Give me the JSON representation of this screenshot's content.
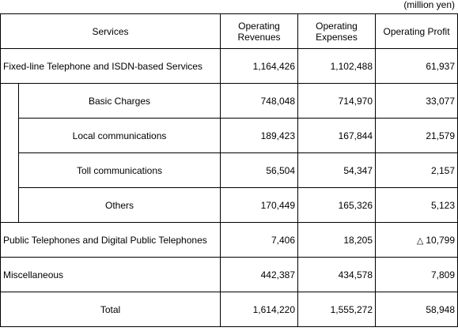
{
  "unit_label": "(million yen)",
  "headers": {
    "services": "Services",
    "revenues": "Operating Revenues",
    "expenses": "Operating Expenses",
    "profit": "Operating Profit"
  },
  "rows": {
    "fixed_line": {
      "name": "Fixed-line Telephone and ISDN-based Services",
      "revenues": "1,164,426",
      "expenses": "1,102,488",
      "profit": "61,937"
    },
    "basic": {
      "name": "Basic Charges",
      "revenues": "748,048",
      "expenses": "714,970",
      "profit": "33,077"
    },
    "local": {
      "name": "Local communications",
      "revenues": "189,423",
      "expenses": "167,844",
      "profit": "21,579"
    },
    "toll": {
      "name": "Toll communications",
      "revenues": "56,504",
      "expenses": "54,347",
      "profit": "2,157"
    },
    "others": {
      "name": "Others",
      "revenues": "170,449",
      "expenses": "165,326",
      "profit": "5,123"
    },
    "public": {
      "name": "Public Telephones and Digital Public Telephones",
      "revenues": "7,406",
      "expenses": "18,205",
      "profit_mark": "△",
      "profit": "10,799"
    },
    "misc": {
      "name": "Miscellaneous",
      "revenues": "442,387",
      "expenses": "434,578",
      "profit": "7,809"
    },
    "total": {
      "name": "Total",
      "revenues": "1,614,220",
      "expenses": "1,555,272",
      "profit": "58,948"
    }
  }
}
